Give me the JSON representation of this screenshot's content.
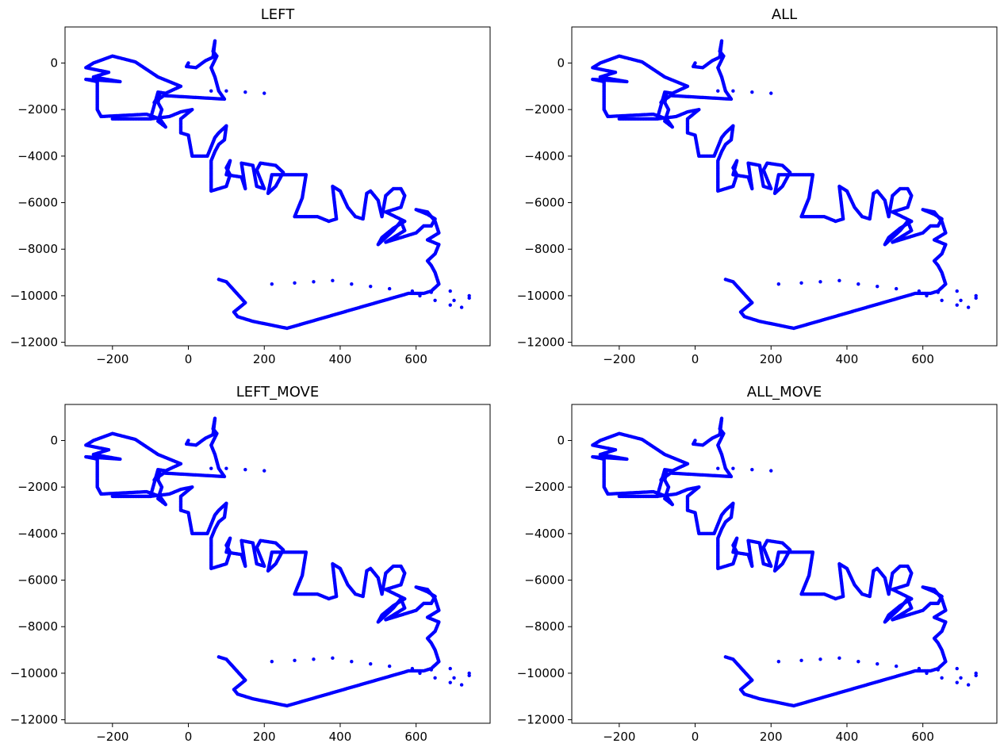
{
  "chart_data": [
    {
      "type": "scatter",
      "title": "LEFT",
      "xlim": [
        -325,
        795
      ],
      "ylim": [
        -12150,
        1550
      ],
      "x_ticks": [
        -200,
        0,
        200,
        400,
        600
      ],
      "y_ticks": [
        0,
        -2000,
        -4000,
        -6000,
        -8000,
        -10000,
        -12000
      ],
      "x_tick_labels": [
        "−200",
        "0",
        "200",
        "400",
        "600"
      ],
      "y_tick_labels": [
        "0",
        "−2000",
        "−4000",
        "−6000",
        "−8000",
        "−10000",
        "−12000"
      ],
      "marker_color": "#0000ff"
    },
    {
      "type": "scatter",
      "title": "ALL",
      "xlim": [
        -325,
        795
      ],
      "ylim": [
        -12150,
        1550
      ],
      "x_ticks": [
        -200,
        0,
        200,
        400,
        600
      ],
      "y_ticks": [
        0,
        -2000,
        -4000,
        -6000,
        -8000,
        -10000,
        -12000
      ],
      "x_tick_labels": [
        "−200",
        "0",
        "200",
        "400",
        "600"
      ],
      "y_tick_labels": [
        "0",
        "−2000",
        "−4000",
        "−6000",
        "−8000",
        "−10000",
        "−12000"
      ],
      "marker_color": "#0000ff"
    },
    {
      "type": "scatter",
      "title": "LEFT_MOVE",
      "xlim": [
        -325,
        795
      ],
      "ylim": [
        -12150,
        1550
      ],
      "x_ticks": [
        -200,
        0,
        200,
        400,
        600
      ],
      "y_ticks": [
        0,
        -2000,
        -4000,
        -6000,
        -8000,
        -10000,
        -12000
      ],
      "x_tick_labels": [
        "−200",
        "0",
        "200",
        "400",
        "600"
      ],
      "y_tick_labels": [
        "0",
        "−2000",
        "−4000",
        "−6000",
        "−8000",
        "−10000",
        "−12000"
      ],
      "marker_color": "#0000ff"
    },
    {
      "type": "scatter",
      "title": "ALL_MOVE",
      "xlim": [
        -325,
        795
      ],
      "ylim": [
        -12150,
        1550
      ],
      "x_ticks": [
        -200,
        0,
        200,
        400,
        600
      ],
      "y_ticks": [
        0,
        -2000,
        -4000,
        -6000,
        -8000,
        -10000,
        -12000
      ],
      "x_tick_labels": [
        "−200",
        "0",
        "200",
        "400",
        "600"
      ],
      "y_tick_labels": [
        "0",
        "−2000",
        "−4000",
        "−6000",
        "−8000",
        "−10000",
        "−12000"
      ],
      "marker_color": "#0000ff"
    }
  ],
  "trace": {
    "description_points": "shared pen trajectory (x, y) in data units, drawn identically in all four panels",
    "dense": [
      [
        0,
        0
      ],
      [
        -5,
        -150
      ],
      [
        20,
        -200
      ],
      [
        45,
        100
      ],
      [
        65,
        250
      ],
      [
        70,
        950
      ],
      [
        65,
        500
      ],
      [
        75,
        300
      ],
      [
        60,
        -200
      ],
      [
        70,
        -600
      ],
      [
        80,
        -1200
      ],
      [
        95,
        -1550
      ],
      [
        -65,
        -1400
      ],
      [
        -90,
        -1700
      ],
      [
        -75,
        -1300
      ],
      [
        -80,
        -1700
      ],
      [
        -70,
        -2000
      ],
      [
        -80,
        -2500
      ],
      [
        -60,
        -2750
      ],
      [
        -75,
        -2400
      ],
      [
        -110,
        -2200
      ],
      [
        -230,
        -2300
      ],
      [
        -240,
        -2000
      ],
      [
        -240,
        -800
      ],
      [
        -270,
        -700
      ],
      [
        -180,
        -800
      ],
      [
        -250,
        -600
      ],
      [
        -210,
        -400
      ],
      [
        -270,
        -200
      ],
      [
        -250,
        0
      ],
      [
        -200,
        300
      ],
      [
        -140,
        50
      ],
      [
        -80,
        -600
      ],
      [
        -20,
        -1000
      ],
      [
        -60,
        -1300
      ],
      [
        -80,
        -1250
      ],
      [
        -100,
        -2400
      ],
      [
        -200,
        -2400
      ],
      [
        -100,
        -2400
      ],
      [
        -50,
        -2300
      ],
      [
        -20,
        -2100
      ],
      [
        10,
        -2000
      ],
      [
        -20,
        -2400
      ],
      [
        -20,
        -3000
      ],
      [
        0,
        -3100
      ],
      [
        10,
        -4000
      ],
      [
        50,
        -4000
      ],
      [
        60,
        -3600
      ],
      [
        70,
        -3200
      ],
      [
        80,
        -3000
      ],
      [
        100,
        -2700
      ],
      [
        95,
        -3300
      ],
      [
        80,
        -3500
      ],
      [
        70,
        -3800
      ],
      [
        60,
        -4200
      ],
      [
        60,
        -5500
      ],
      [
        100,
        -5300
      ],
      [
        110,
        -4800
      ],
      [
        100,
        -4500
      ],
      [
        110,
        -4200
      ],
      [
        100,
        -4800
      ],
      [
        140,
        -4900
      ],
      [
        150,
        -5400
      ],
      [
        140,
        -4300
      ],
      [
        170,
        -4400
      ],
      [
        180,
        -5300
      ],
      [
        200,
        -5400
      ],
      [
        180,
        -4600
      ],
      [
        190,
        -4300
      ],
      [
        230,
        -4400
      ],
      [
        250,
        -4700
      ],
      [
        230,
        -5300
      ],
      [
        210,
        -5600
      ],
      [
        220,
        -4800
      ],
      [
        310,
        -4800
      ],
      [
        300,
        -5800
      ],
      [
        280,
        -6600
      ],
      [
        340,
        -6600
      ],
      [
        370,
        -6800
      ],
      [
        390,
        -6700
      ],
      [
        380,
        -5300
      ],
      [
        400,
        -5500
      ],
      [
        420,
        -6200
      ],
      [
        440,
        -6600
      ],
      [
        460,
        -6700
      ],
      [
        470,
        -5600
      ],
      [
        480,
        -5500
      ],
      [
        500,
        -5900
      ],
      [
        510,
        -6600
      ],
      [
        520,
        -5700
      ],
      [
        540,
        -5400
      ],
      [
        560,
        -5400
      ],
      [
        570,
        -5700
      ],
      [
        560,
        -6200
      ],
      [
        520,
        -6400
      ],
      [
        570,
        -6800
      ],
      [
        540,
        -7100
      ],
      [
        510,
        -7500
      ],
      [
        500,
        -7800
      ],
      [
        540,
        -7200
      ],
      [
        560,
        -6800
      ],
      [
        570,
        -7200
      ],
      [
        530,
        -7600
      ],
      [
        520,
        -7700
      ],
      [
        600,
        -7300
      ],
      [
        620,
        -7000
      ],
      [
        640,
        -7000
      ],
      [
        650,
        -6700
      ],
      [
        630,
        -6500
      ],
      [
        600,
        -6300
      ],
      [
        630,
        -6400
      ],
      [
        650,
        -6800
      ],
      [
        660,
        -7300
      ],
      [
        630,
        -7600
      ],
      [
        660,
        -7800
      ],
      [
        650,
        -8200
      ],
      [
        630,
        -8500
      ],
      [
        640,
        -8700
      ],
      [
        650,
        -9000
      ],
      [
        660,
        -9500
      ],
      [
        640,
        -9800
      ],
      [
        620,
        -9900
      ],
      [
        600,
        -9900
      ],
      [
        580,
        -9900
      ],
      [
        260,
        -11400
      ],
      [
        200,
        -11200
      ],
      [
        170,
        -11100
      ],
      [
        130,
        -10900
      ],
      [
        120,
        -10700
      ],
      [
        150,
        -10300
      ],
      [
        100,
        -9400
      ],
      [
        80,
        -9300
      ]
    ],
    "sparse": [
      [
        0,
        -150
      ],
      [
        60,
        -1200
      ],
      [
        100,
        -1200
      ],
      [
        150,
        -1250
      ],
      [
        200,
        -1300
      ],
      [
        220,
        -9500
      ],
      [
        280,
        -9450
      ],
      [
        330,
        -9400
      ],
      [
        380,
        -9350
      ],
      [
        430,
        -9500
      ],
      [
        480,
        -9600
      ],
      [
        530,
        -9700
      ],
      [
        590,
        -9800
      ],
      [
        640,
        -9850
      ],
      [
        690,
        -9800
      ],
      [
        740,
        -10000
      ],
      [
        700,
        -10200
      ],
      [
        650,
        -10200
      ],
      [
        610,
        -10000
      ],
      [
        690,
        -10400
      ],
      [
        720,
        -10500
      ],
      [
        740,
        -10100
      ]
    ]
  }
}
